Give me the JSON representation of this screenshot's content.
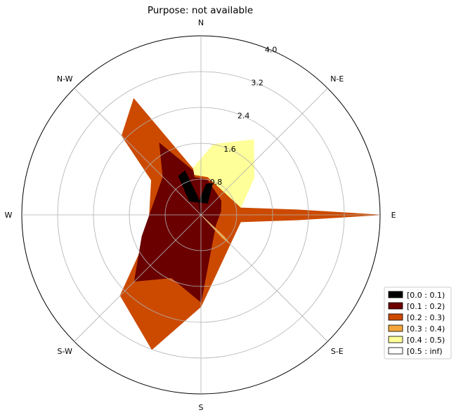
{
  "chart_data": {
    "type": "windrose",
    "title": "Purpose: not available",
    "directions": [
      "N",
      "N-E",
      "E",
      "S-E",
      "S",
      "S-W",
      "W",
      "N-W"
    ],
    "angles_deg": [
      0,
      45,
      90,
      135,
      180,
      225,
      270,
      315
    ],
    "r_ticks": [
      0.8,
      1.6,
      2.4,
      3.2,
      4.0
    ],
    "r_tick_labels": [
      "0.8",
      "1.6",
      "2.4",
      "3.2",
      "4.0"
    ],
    "rmax": 4.0,
    "grid": true,
    "legend_position": "lower-right",
    "bins": [
      {
        "label": "[0.0 : 0.1)",
        "color": "#000000"
      },
      {
        "label": "[0.1 : 0.2)",
        "color": "#6b0000"
      },
      {
        "label": "[0.2 : 0.3)",
        "color": "#cc4a00"
      },
      {
        "label": "[0.3 : 0.4)",
        "color": "#f4a63c"
      },
      {
        "label": "[0.4 : 0.5)",
        "color": "#ffff99"
      },
      {
        "label": "[0.5 : inf)",
        "color": "#ffffff"
      }
    ],
    "wedges": [
      {
        "bin": "[0.4 : 0.5)",
        "color": "#ffff99",
        "angles": [
          -10,
          10,
          35,
          55,
          80
        ],
        "radii": [
          1.05,
          1.6,
          2.05,
          1.45,
          0.9
        ]
      },
      {
        "bin": "[0.2 : 0.3)",
        "color": "#cc4a00",
        "angles": [
          -10,
          10,
          80,
          87,
          90,
          93,
          100,
          180,
          200,
          225,
          250,
          305,
          315,
          330,
          350
        ],
        "radii": [
          0.9,
          0.85,
          0.9,
          2.15,
          4.0,
          2.15,
          0.9,
          2.05,
          3.2,
          2.55,
          1.25,
          1.35,
          2.5,
          3.0,
          1.05
        ]
      },
      {
        "bin": "[0.1 : 0.2)",
        "color": "#6b0000",
        "angles": [
          -10,
          10,
          55,
          80,
          125,
          180,
          205,
          225,
          250,
          300,
          315,
          330,
          350
        ],
        "radii": [
          0.85,
          0.8,
          0.55,
          0.45,
          0.4,
          1.95,
          1.55,
          2.1,
          1.4,
          1.1,
          1.2,
          1.85,
          1.0
        ]
      },
      {
        "bin": "[0.0 : 0.1)",
        "color": "#000000",
        "angles": [
          -10,
          10,
          20,
          30,
          320,
          330,
          340,
          350
        ],
        "radii": [
          0.3,
          0.7,
          0.75,
          0.3,
          0.4,
          1.0,
          1.05,
          0.4
        ]
      },
      {
        "bin": "[0.3 : 0.4)",
        "color": "#f4a63c",
        "angles": [
          133,
          135,
          137
        ],
        "radii": [
          0.7,
          0.9,
          0.7
        ]
      }
    ]
  }
}
